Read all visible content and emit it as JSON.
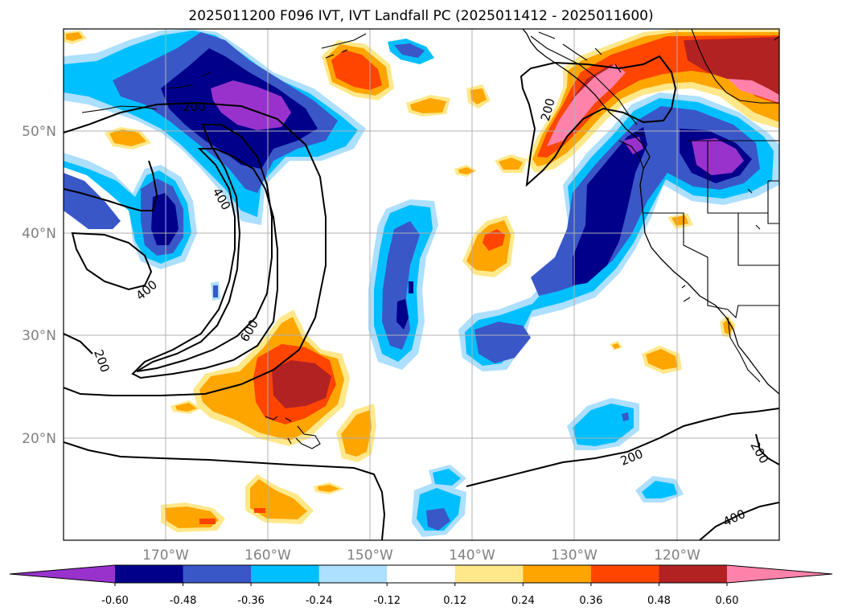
{
  "title": "2025011200 F096 IVT, IVT Landfall PC (2025011412 - 2025011600)",
  "map": {
    "lon_range": [
      -180,
      -110
    ],
    "lat_range": [
      10,
      60
    ],
    "lat_ticks": [
      {
        "value": 20,
        "label": "20°N"
      },
      {
        "value": 30,
        "label": "30°N"
      },
      {
        "value": 40,
        "label": "40°N"
      },
      {
        "value": 50,
        "label": "50°N"
      }
    ],
    "lon_ticks": [
      {
        "value": -170,
        "label": "170°W"
      },
      {
        "value": -160,
        "label": "160°W"
      },
      {
        "value": -150,
        "label": "150°W"
      },
      {
        "value": -140,
        "label": "140°W"
      },
      {
        "value": -130,
        "label": "130°W"
      },
      {
        "value": -120,
        "label": "120°W"
      }
    ],
    "grid": true,
    "contour_labels": [
      "200",
      "200",
      "400",
      "400",
      "600",
      "200",
      "200",
      "200",
      "400"
    ]
  },
  "colorbar": {
    "orientation": "horizontal",
    "extend": "both",
    "colors": [
      "#9932CC",
      "#00008B",
      "#3A57C8",
      "#00BFFF",
      "#ADDFFF",
      "#FFFFFF",
      "#FFE88A",
      "#FFA500",
      "#FF4500",
      "#B22222",
      "#FF82AB"
    ],
    "labels": [
      "-0.60",
      "-0.48",
      "-0.36",
      "-0.24",
      "-0.12",
      "0.12",
      "0.24",
      "0.36",
      "0.48",
      "0.60"
    ]
  },
  "palette": {
    "strong_negative": "#9932CC",
    "navy": "#00008B",
    "royal": "#3A57C8",
    "sky": "#00BFFF",
    "pale_sky": "#ADDFFF",
    "pale_yellow": "#FFE88A",
    "orange": "#FFA500",
    "red_orange": "#FF4500",
    "firebrick": "#B22222",
    "pink": "#FF82AB"
  }
}
